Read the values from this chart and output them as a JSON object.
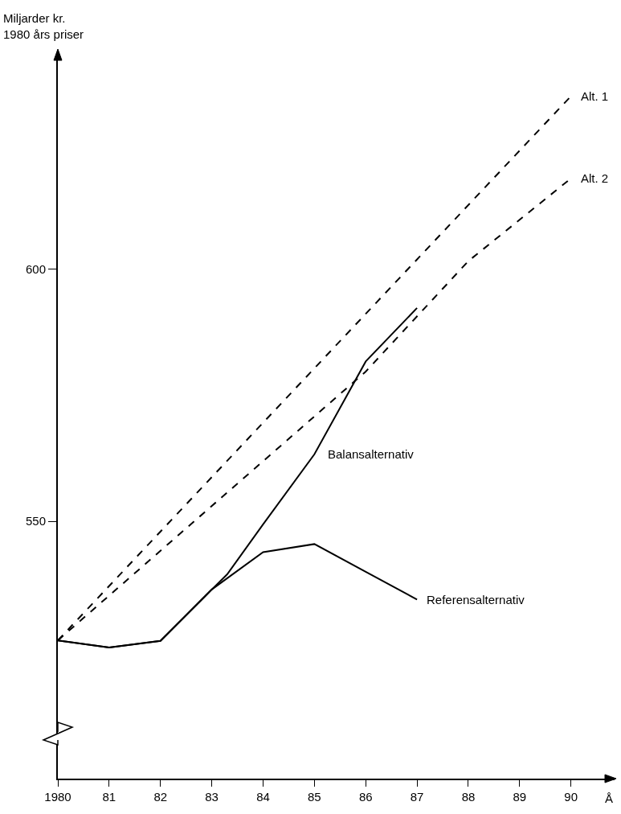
{
  "chart_data": {
    "type": "line",
    "xlabel": "Å",
    "ylabel": "Miljarder kr.\n1980 års priser",
    "xlim": [
      1980,
      1990.85
    ],
    "xticks": [
      1980,
      {
        "value": 1981,
        "label": "81"
      },
      {
        "value": 1982,
        "label": "82"
      },
      {
        "value": 1983,
        "label": "83"
      },
      {
        "value": 1984,
        "label": "84"
      },
      {
        "value": 1985,
        "label": "85"
      },
      {
        "value": 1986,
        "label": "86"
      },
      {
        "value": 1987,
        "label": "87"
      },
      {
        "value": 1988,
        "label": "88"
      },
      {
        "value": 1989,
        "label": "89"
      },
      {
        "value": 1990,
        "label": "90"
      }
    ],
    "ylim": [
      499,
      643
    ],
    "yticks": [
      550,
      600
    ],
    "grid": false,
    "legend": false,
    "marker": "none",
    "series": [
      {
        "name": "Alt. 1",
        "color": "#000000",
        "line_style": "dashed",
        "x": [
          1980,
          1990
        ],
        "values": [
          526.4,
          634.3
        ]
      },
      {
        "name": "Alt. 2",
        "color": "#000000",
        "line_style": "dashed",
        "x": [
          1980,
          1986,
          1988,
          1990
        ],
        "values": [
          526.4,
          579.7,
          601.6,
          618.0
        ]
      },
      {
        "name": "Balansalternativ",
        "color": "#000000",
        "line_style": "solid",
        "x": [
          1980,
          1981,
          1982,
          1983,
          1983.3,
          1984,
          1985,
          1986,
          1987
        ],
        "values": [
          526.4,
          525,
          526.3,
          536.5,
          539.5,
          549.4,
          563.3,
          581.7,
          592.3
        ]
      },
      {
        "name": "Referensalternativ",
        "color": "#000000",
        "line_style": "solid",
        "x": [
          1980,
          1981,
          1982,
          1983,
          1984,
          1985,
          1986,
          1987
        ],
        "values": [
          526.4,
          525,
          526.3,
          536.5,
          543.9,
          545.5,
          540,
          534.5
        ]
      }
    ]
  }
}
